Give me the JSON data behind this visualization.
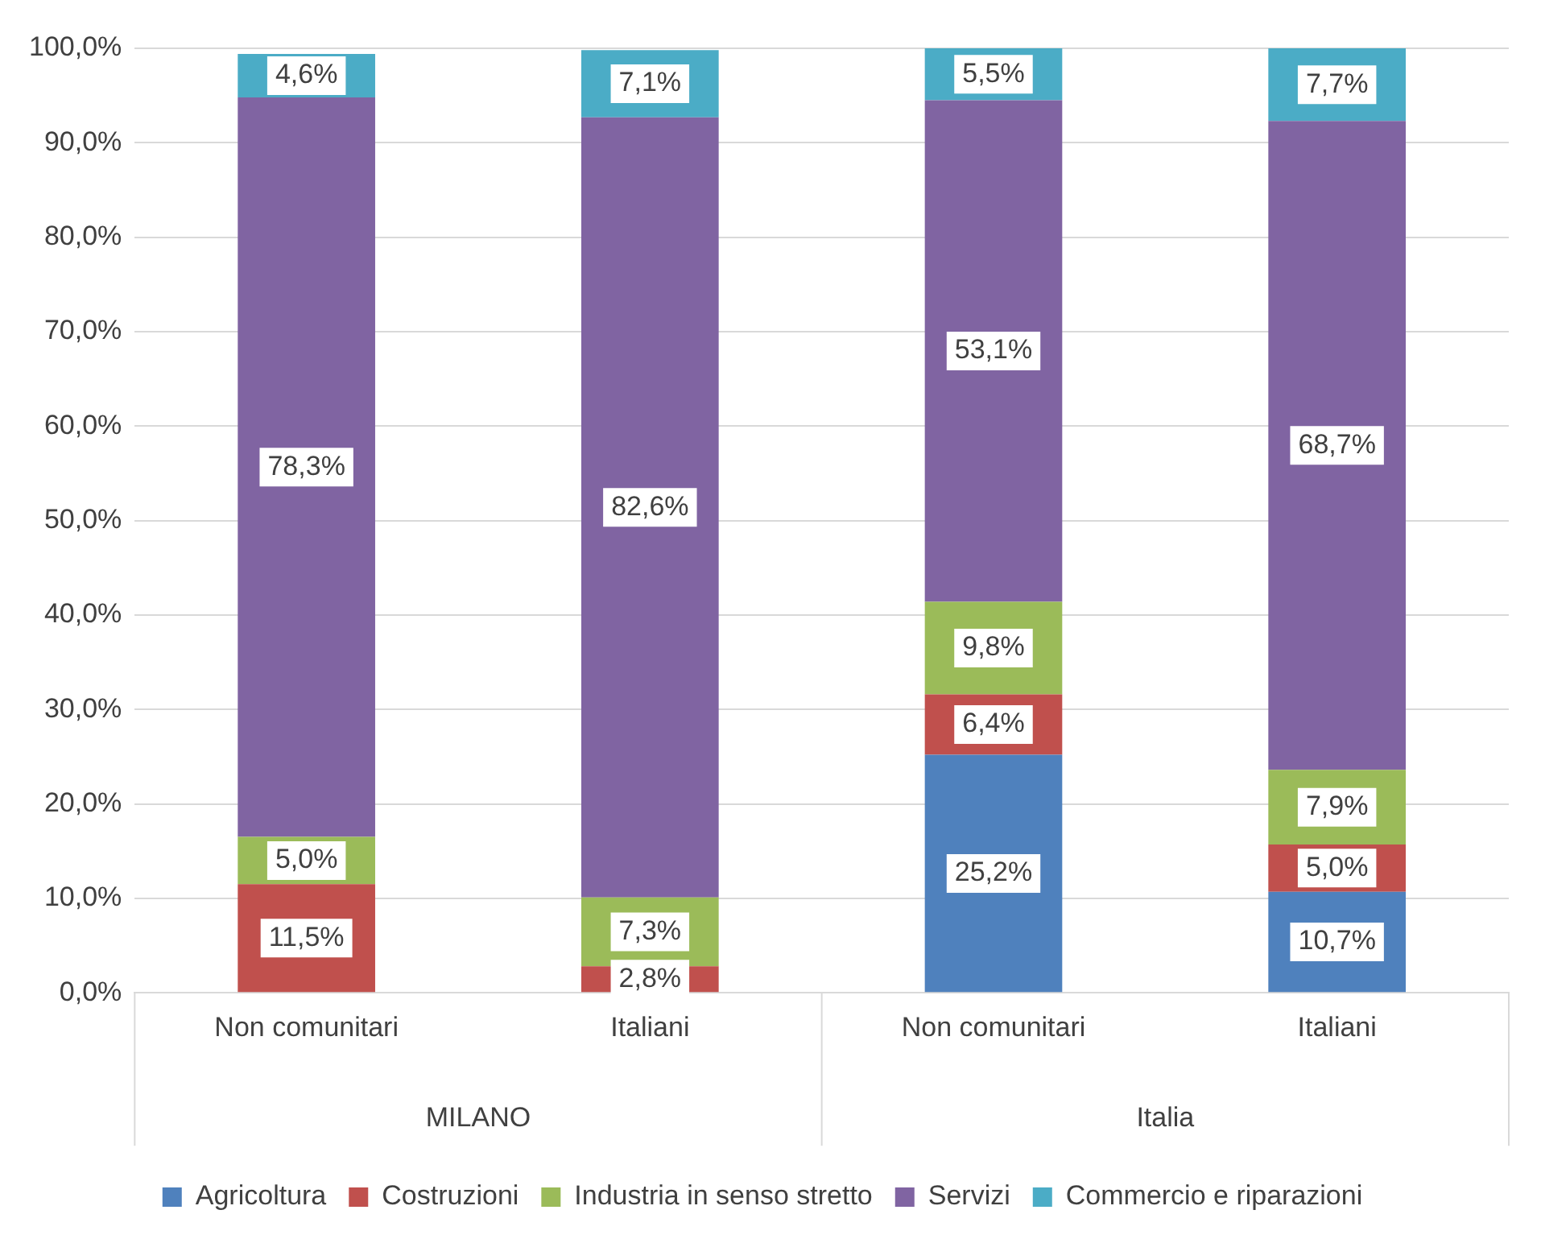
{
  "chart_data": {
    "type": "bar",
    "stacked": true,
    "categories": [
      "Non comunitari",
      "Italiani",
      "Non comunitari",
      "Italiani"
    ],
    "annotations": [
      "MILANO",
      "Italia"
    ],
    "series": [
      {
        "name": "Agricoltura",
        "color": "#4f81bd",
        "values": [
          null,
          null,
          25.2,
          10.7
        ],
        "value_labels": [
          null,
          null,
          "25,2%",
          "10,7%"
        ]
      },
      {
        "name": "Costruzioni",
        "color": "#c0504d",
        "values": [
          11.5,
          2.8,
          6.4,
          5.0
        ],
        "value_labels": [
          "11,5%",
          "2,8%",
          "6,4%",
          "5,0%"
        ]
      },
      {
        "name": "Industria in senso stretto",
        "color": "#9bbb59",
        "values": [
          5.0,
          7.3,
          9.8,
          7.9
        ],
        "value_labels": [
          "5,0%",
          "7,3%",
          "9,8%",
          "7,9%"
        ]
      },
      {
        "name": "Servizi",
        "color": "#8064a2",
        "values": [
          78.3,
          82.6,
          53.1,
          68.7
        ],
        "value_labels": [
          "78,3%",
          "82,6%",
          "53,1%",
          "68,7%"
        ]
      },
      {
        "name": "Commercio e riparazioni",
        "color": "#4bacc6",
        "values": [
          4.6,
          7.1,
          5.5,
          7.7
        ],
        "value_labels": [
          "4,6%",
          "7,1%",
          "5,5%",
          "7,7%"
        ]
      }
    ],
    "ylim": [
      0,
      100
    ],
    "yticks": [
      {
        "value": 0,
        "label": "0,0%"
      },
      {
        "value": 10,
        "label": "10,0%"
      },
      {
        "value": 20,
        "label": "20,0%"
      },
      {
        "value": 30,
        "label": "30,0%"
      },
      {
        "value": 40,
        "label": "40,0%"
      },
      {
        "value": 50,
        "label": "50,0%"
      },
      {
        "value": 60,
        "label": "60,0%"
      },
      {
        "value": 70,
        "label": "70,0%"
      },
      {
        "value": 80,
        "label": "80,0%"
      },
      {
        "value": 90,
        "label": "90,0%"
      },
      {
        "value": 100,
        "label": "100,0%"
      }
    ],
    "grid": "y",
    "legend": "bottom"
  }
}
